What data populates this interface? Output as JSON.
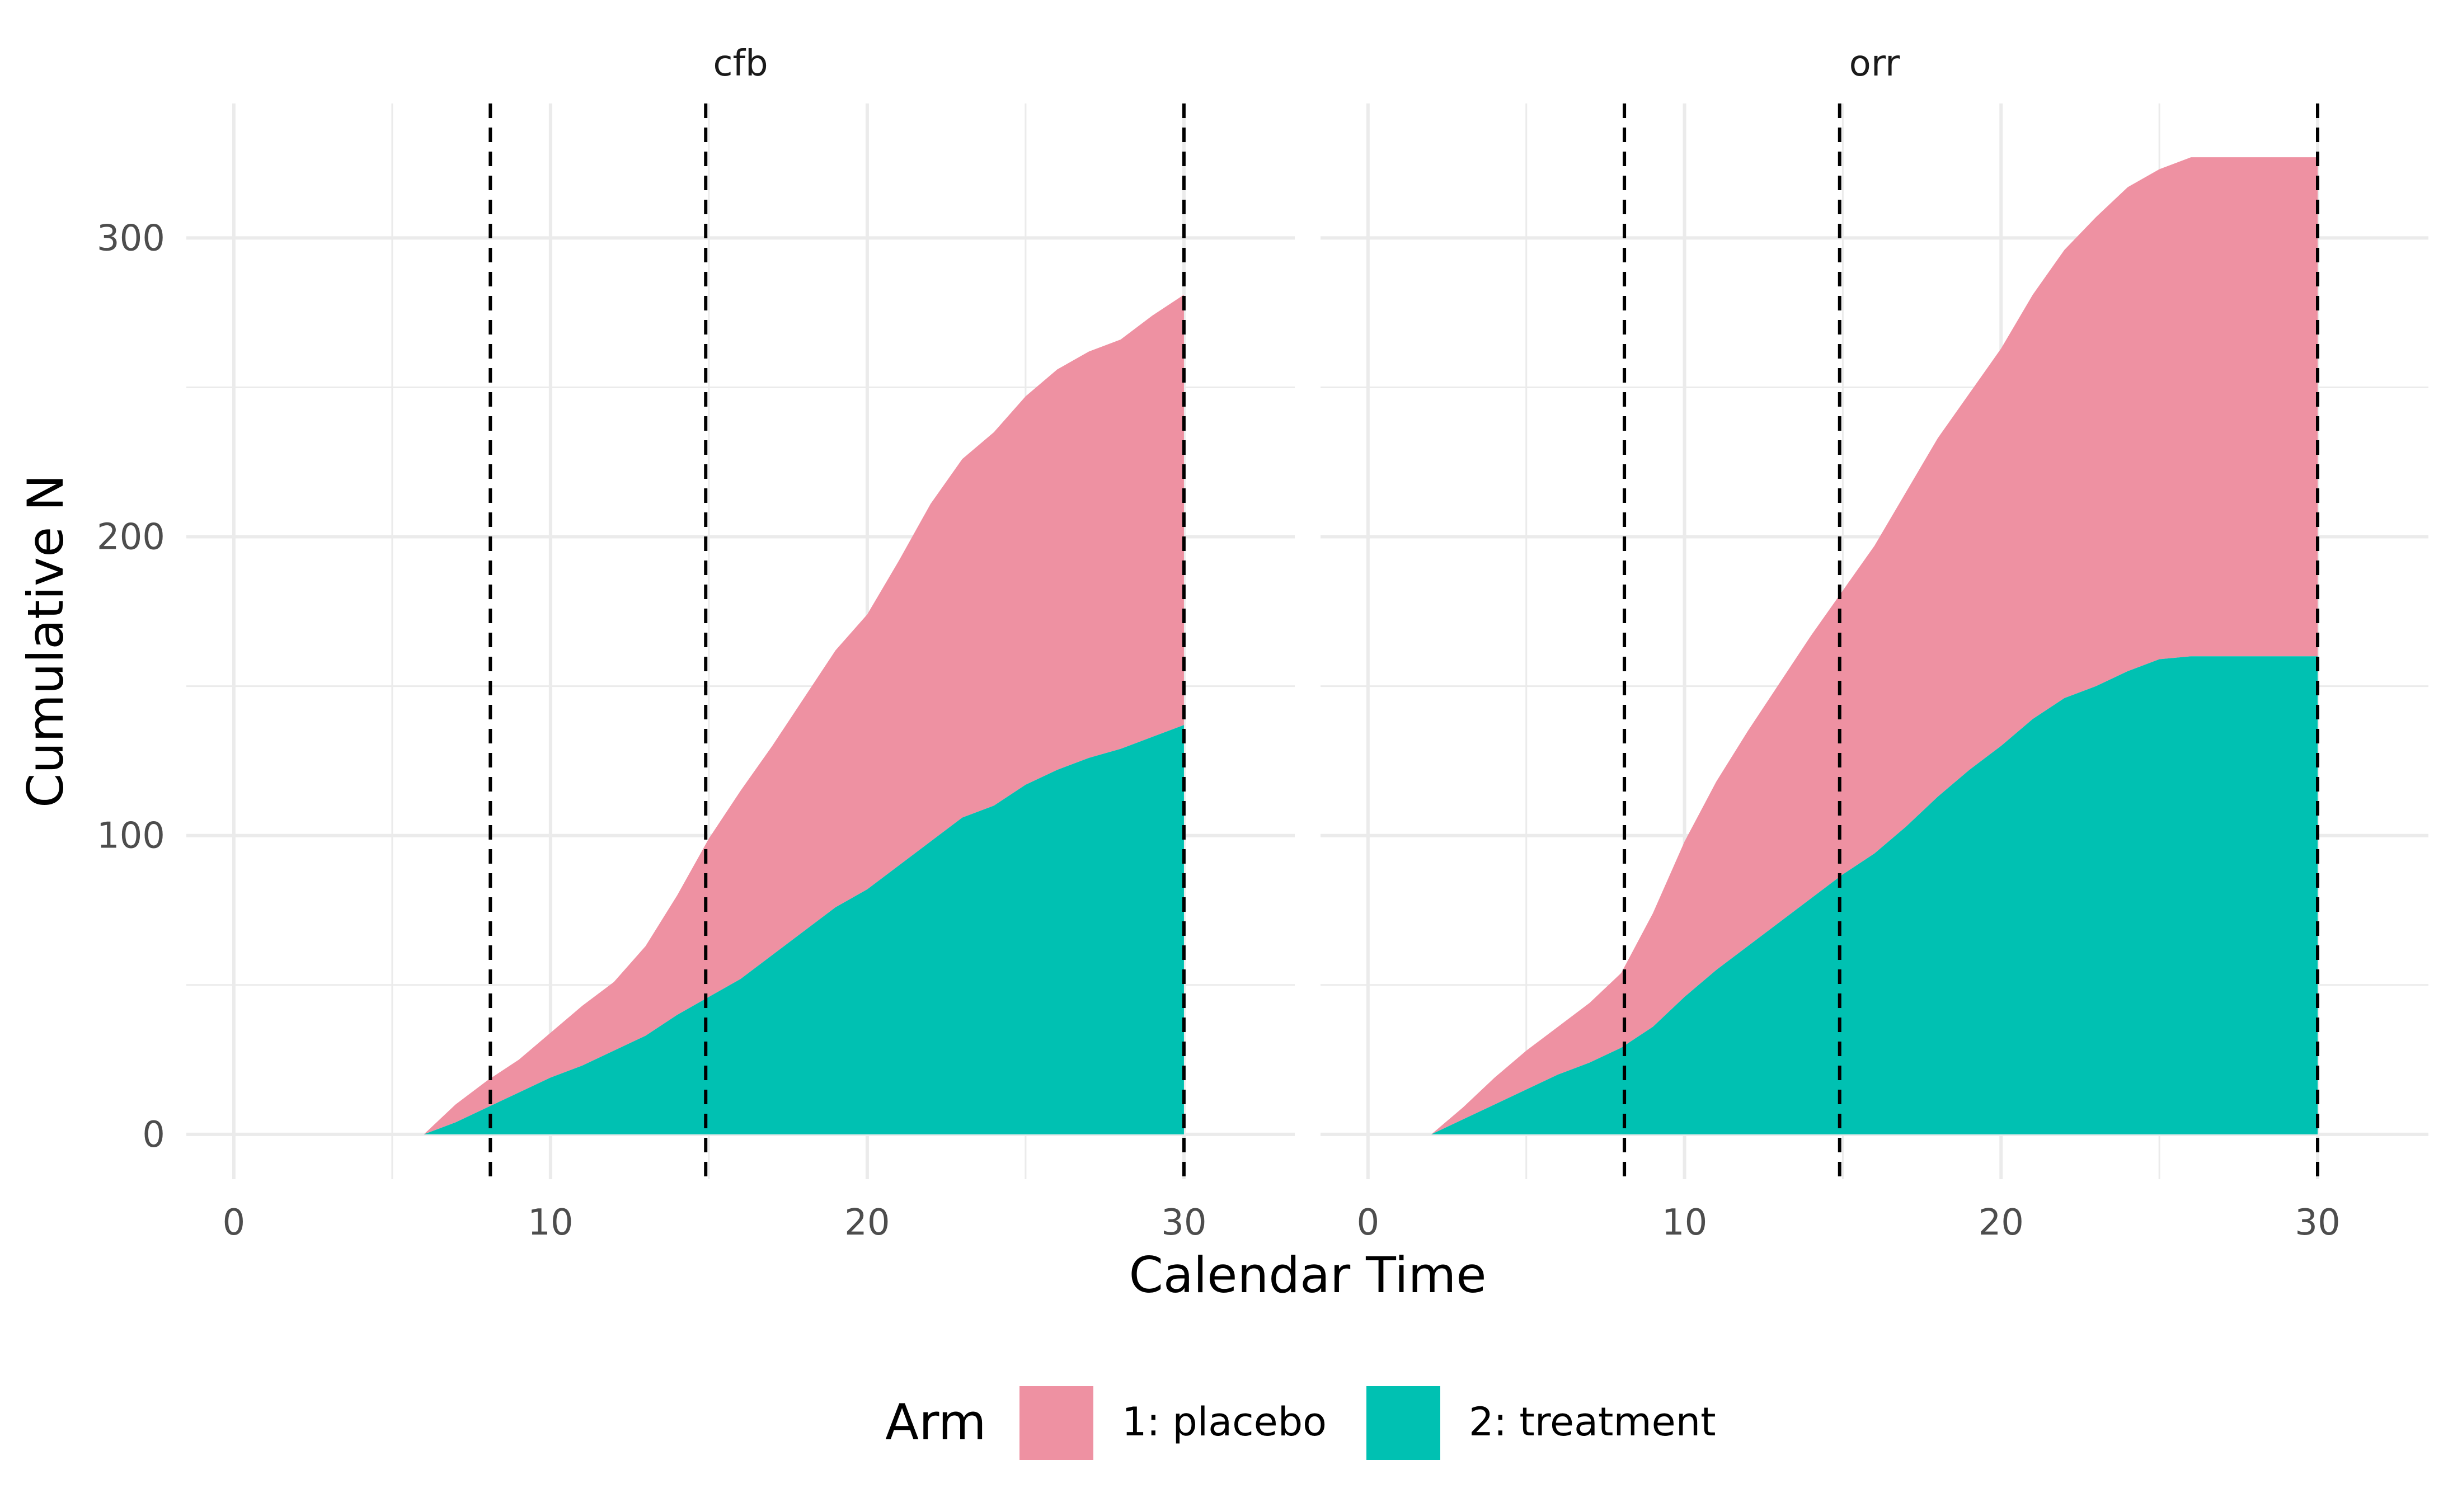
{
  "chart_data": {
    "type": "area",
    "stacked": true,
    "xlabel": "Calendar Time",
    "ylabel": "Cumulative N",
    "xlim": [
      -1.5,
      33.5
    ],
    "ylim": [
      -15,
      345
    ],
    "x_ticks": [
      "0",
      "10",
      "20",
      "30"
    ],
    "x_tick_values": [
      0,
      10,
      20,
      30
    ],
    "y_ticks": [
      "0",
      "100",
      "200",
      "300"
    ],
    "y_tick_values": [
      0,
      100,
      200,
      300
    ],
    "grid": true,
    "legend": {
      "title": "Arm",
      "placement": "bottom",
      "entries": [
        {
          "label": "1: placebo",
          "color": "#EE91A2"
        },
        {
          "label": "2: treatment",
          "color": "#00C1B2"
        }
      ]
    },
    "reference_lines": {
      "style": "dashed",
      "x": [
        8.1,
        14.9,
        30
      ]
    },
    "panels": [
      {
        "title": "cfb",
        "x": [
          6,
          7,
          8,
          9,
          10,
          11,
          12,
          13,
          14,
          15,
          16,
          17,
          18,
          19,
          20,
          21,
          22,
          23,
          24,
          25,
          26,
          27,
          28,
          29,
          30
        ],
        "series": [
          {
            "name": "2: treatment",
            "values": [
              0,
              4,
              9,
              14,
              19,
              23,
              28,
              33,
              40,
              46,
              52,
              60,
              68,
              76,
              82,
              90,
              98,
              106,
              110,
              117,
              122,
              126,
              129,
              133,
              137
            ]
          },
          {
            "name": "1: placebo",
            "values": [
              0,
              6,
              9,
              11,
              15,
              20,
              23,
              30,
              40,
              53,
              63,
              70,
              78,
              86,
              92,
              102,
              113,
              120,
              125,
              130,
              134,
              136,
              137,
              141,
              144
            ]
          }
        ]
      },
      {
        "title": "orr",
        "x": [
          2,
          3,
          4,
          5,
          6,
          7,
          8,
          9,
          10,
          11,
          12,
          13,
          14,
          15,
          16,
          17,
          18,
          19,
          20,
          21,
          22,
          23,
          24,
          25,
          26,
          27,
          28,
          29,
          30
        ],
        "series": [
          {
            "name": "2: treatment",
            "values": [
              0,
              5,
              10,
              15,
              20,
              24,
              29,
              36,
              46,
              55,
              63,
              71,
              79,
              87,
              94,
              103,
              113,
              122,
              130,
              139,
              146,
              150,
              155,
              159,
              160,
              160,
              160,
              160,
              160
            ]
          },
          {
            "name": "1: placebo",
            "values": [
              0,
              4,
              9,
              13,
              16,
              20,
              25,
              38,
              52,
              63,
              72,
              80,
              88,
              95,
              103,
              112,
              120,
              126,
              133,
              142,
              150,
              157,
              162,
              164,
              167,
              167,
              167,
              167,
              167
            ]
          }
        ]
      }
    ]
  }
}
